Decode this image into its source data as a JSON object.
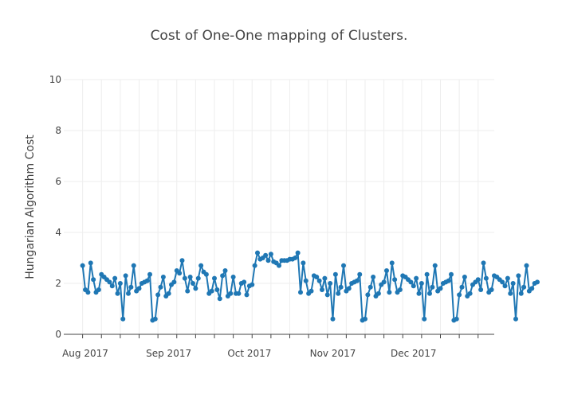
{
  "chart_data": {
    "type": "line",
    "title": "Cost of One-One mapping of Clusters.",
    "xlabel": "",
    "ylabel": "Hungarian Algorithm Cost",
    "x_range": [
      "2017-07-24",
      "2017-12-31"
    ],
    "ylim": [
      0,
      10
    ],
    "y_ticks": [
      0,
      2,
      4,
      6,
      8,
      10
    ],
    "x_ticks": [
      {
        "date": "2017-08-01",
        "label": "Aug 2017"
      },
      {
        "date": "2017-09-01",
        "label": "Sep 2017"
      },
      {
        "date": "2017-10-01",
        "label": "Oct 2017"
      },
      {
        "date": "2017-11-01",
        "label": "Nov 2017"
      },
      {
        "date": "2017-12-01",
        "label": "Dec 2017"
      }
    ],
    "grid": true,
    "line_color": "#1f77b4",
    "series": [
      {
        "mode": "lines+markers",
        "start_date": "2017-07-31",
        "interval_days": 1,
        "y": [
          2.7,
          1.75,
          1.65,
          2.8,
          2.15,
          1.65,
          1.75,
          2.35,
          2.25,
          2.15,
          2.05,
          1.9,
          2.2,
          1.6,
          2.0,
          0.6,
          2.3,
          1.6,
          1.85,
          2.7,
          1.7,
          1.8,
          2.0,
          2.05,
          2.1,
          2.35,
          0.55,
          0.6,
          1.55,
          1.85,
          2.25,
          1.5,
          1.6,
          1.95,
          2.05,
          2.5,
          2.4,
          2.9,
          2.2,
          1.7,
          2.25,
          2.0,
          1.8,
          2.2,
          2.7,
          2.45,
          2.35,
          1.6,
          1.7,
          2.2,
          1.75,
          1.4,
          2.3,
          2.5,
          1.5,
          1.6,
          2.25,
          1.6,
          1.6,
          2.0,
          2.05,
          1.55,
          1.9,
          1.95,
          2.7,
          3.2,
          2.95,
          3.0,
          3.1,
          2.9,
          3.15,
          2.85,
          2.8,
          2.7,
          2.9,
          2.9,
          2.9,
          2.95,
          2.95,
          3.0,
          3.2,
          1.65,
          2.8,
          2.1,
          1.6,
          1.7,
          2.3,
          2.25,
          2.1,
          1.75,
          2.2,
          1.55,
          2.0,
          0.6,
          2.35,
          1.6,
          1.85,
          2.7,
          1.7,
          1.8,
          2.0,
          2.05,
          2.1,
          2.35,
          0.55,
          0.6,
          1.55,
          1.85,
          2.25,
          1.5,
          1.6,
          1.95,
          2.05,
          2.5,
          1.65,
          2.8,
          2.15,
          1.65,
          1.75,
          2.3,
          2.25,
          2.15,
          2.05,
          1.9,
          2.2,
          1.6,
          2.0,
          0.6,
          2.35,
          1.6,
          1.85,
          2.7,
          1.7,
          1.8,
          2.0,
          2.05,
          2.1,
          2.35,
          0.55,
          0.6,
          1.55,
          1.85,
          2.25,
          1.5,
          1.6,
          1.95,
          2.05,
          2.15,
          1.75,
          2.8,
          2.2,
          1.65,
          1.75,
          2.3,
          2.25,
          2.15,
          2.05,
          1.9,
          2.2,
          1.6,
          2.0,
          0.6,
          2.3,
          1.6,
          1.85,
          2.7,
          1.7,
          1.8,
          2.0,
          2.05
        ]
      }
    ]
  }
}
